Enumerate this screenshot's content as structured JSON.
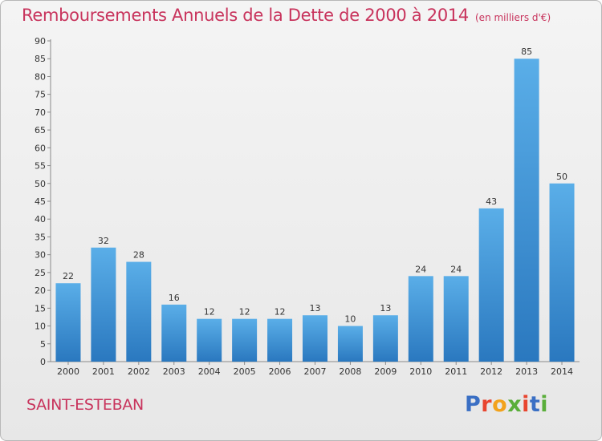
{
  "chart_data": {
    "type": "bar",
    "title": "Remboursements Annuels de la Dette de 2000 à 2014",
    "unit_label": "(en milliers d'€)",
    "categories": [
      "2000",
      "2001",
      "2002",
      "2003",
      "2004",
      "2005",
      "2006",
      "2007",
      "2008",
      "2009",
      "2010",
      "2011",
      "2012",
      "2013",
      "2014"
    ],
    "values": [
      22,
      32,
      28,
      16,
      12,
      12,
      12,
      13,
      10,
      13,
      24,
      24,
      43,
      85,
      50
    ],
    "ylim": [
      0,
      90
    ],
    "yticks": [
      0,
      5,
      10,
      15,
      20,
      25,
      30,
      35,
      40,
      45,
      50,
      55,
      60,
      65,
      70,
      75,
      80,
      85,
      90
    ],
    "grid": false,
    "colors": {
      "bar_top": "#5aaee8",
      "bar_bottom": "#2a78bf",
      "title": "#c8335c"
    }
  },
  "footer": {
    "commune": "SAINT-ESTEBAN",
    "logo_text": "Proxiti",
    "logo_colors": [
      "#3a6fc4",
      "#e8452f",
      "#f2a21c",
      "#5aae3a",
      "#e8452f",
      "#3a6fc4",
      "#5aae3a"
    ]
  }
}
